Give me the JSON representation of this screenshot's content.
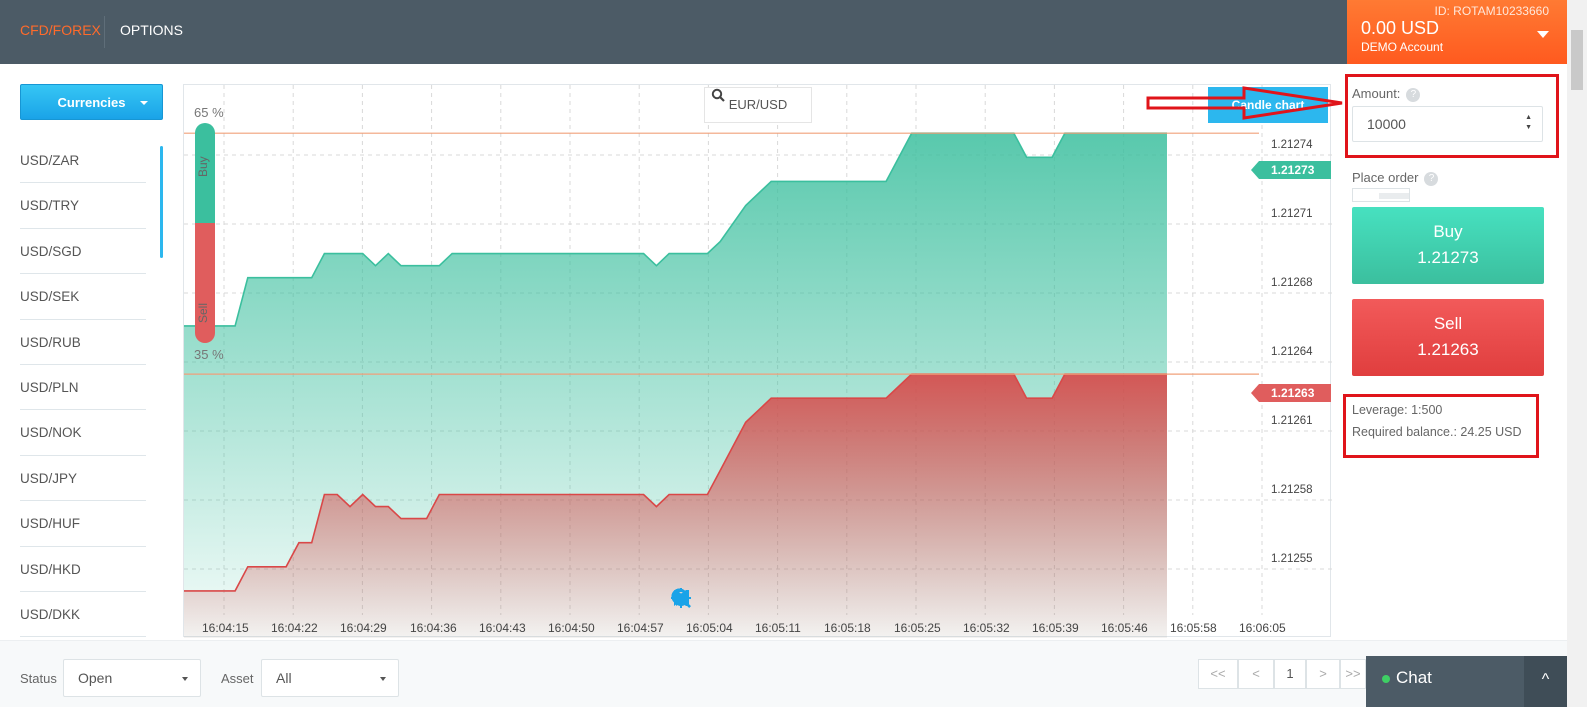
{
  "header": {
    "nav": [
      "CFD/FOREX",
      "OPTIONS"
    ],
    "account": {
      "id": "ID: ROTAM10233660",
      "balance": "0.00 USD",
      "type": "DEMO Account"
    }
  },
  "sidebar": {
    "currencies_button": "Currencies",
    "items": [
      "USD/ZAR",
      "USD/TRY",
      "USD/SGD",
      "USD/SEK",
      "USD/RUB",
      "USD/PLN",
      "USD/NOK",
      "USD/JPY",
      "USD/HUF",
      "USD/HKD",
      "USD/DKK"
    ]
  },
  "chart": {
    "pair": "EUR/USD",
    "candle_button": "Candle chart",
    "buy_pct": "65 %",
    "sell_pct": "35 %",
    "buy_label": "Buy",
    "sell_label": "Sell",
    "current_buy": "1.21273",
    "current_sell": "1.21263"
  },
  "chart_data": {
    "type": "area",
    "x": [
      "16:04:15",
      "16:04:22",
      "16:04:29",
      "16:04:36",
      "16:04:43",
      "16:04:50",
      "16:04:57",
      "16:05:04",
      "16:05:11",
      "16:05:18",
      "16:05:25",
      "16:05:32",
      "16:05:39",
      "16:05:46",
      "16:05:58",
      "16:06:05"
    ],
    "y_ticks": [
      "1.21274",
      "1.21271",
      "1.21268",
      "1.21264",
      "1.21261",
      "1.21258",
      "1.21255"
    ],
    "ylim": [
      1.21253,
      1.21275
    ],
    "series": [
      {
        "color": "#3bbf9e",
        "points": [
          [
            0,
            1.21265
          ],
          [
            4,
            1.21265
          ],
          [
            5,
            1.21267
          ],
          [
            10,
            1.21267
          ],
          [
            11,
            1.21268
          ],
          [
            14,
            1.21268
          ],
          [
            15,
            1.212675
          ],
          [
            16,
            1.21268
          ],
          [
            17,
            1.212675
          ],
          [
            20,
            1.212675
          ],
          [
            21,
            1.21268
          ],
          [
            36,
            1.21268
          ],
          [
            37,
            1.212675
          ],
          [
            38,
            1.21268
          ],
          [
            41,
            1.21268
          ],
          [
            42,
            1.212685
          ],
          [
            44,
            1.2127
          ],
          [
            46,
            1.21271
          ],
          [
            55,
            1.21271
          ],
          [
            57,
            1.21273
          ],
          [
            65,
            1.21273
          ],
          [
            66,
            1.21272
          ],
          [
            68,
            1.21272
          ],
          [
            69,
            1.21273
          ],
          [
            77,
            1.21273
          ]
        ]
      },
      {
        "color": "#d94848",
        "points": [
          [
            0,
            1.21254
          ],
          [
            4,
            1.21254
          ],
          [
            5,
            1.21255
          ],
          [
            8,
            1.21255
          ],
          [
            9,
            1.21256
          ],
          [
            10,
            1.21256
          ],
          [
            11,
            1.21258
          ],
          [
            12,
            1.21258
          ],
          [
            13,
            1.212575
          ],
          [
            14,
            1.21258
          ],
          [
            15,
            1.212575
          ],
          [
            16,
            1.212575
          ],
          [
            17,
            1.21257
          ],
          [
            19,
            1.21257
          ],
          [
            20,
            1.21258
          ],
          [
            36,
            1.21258
          ],
          [
            37,
            1.212575
          ],
          [
            38,
            1.21258
          ],
          [
            41,
            1.21258
          ],
          [
            42,
            1.21259
          ],
          [
            44,
            1.21261
          ],
          [
            46,
            1.21262
          ],
          [
            55,
            1.21262
          ],
          [
            57,
            1.21263
          ],
          [
            65,
            1.21263
          ],
          [
            66,
            1.21262
          ],
          [
            68,
            1.21262
          ],
          [
            69,
            1.21263
          ],
          [
            77,
            1.21263
          ]
        ]
      }
    ]
  },
  "order": {
    "amount_label": "Amount:",
    "amount_value": "10000",
    "place_order_label": "Place order",
    "help_glyph": "?",
    "buy": {
      "label": "Buy",
      "price": "1.21273"
    },
    "sell": {
      "label": "Sell",
      "price": "1.21263"
    },
    "leverage": "Leverage: 1:500",
    "required_balance": "Required balance.: 24.25 USD"
  },
  "filters": {
    "status_label": "Status",
    "status_value": "Open",
    "asset_label": "Asset",
    "asset_value": "All"
  },
  "pagination": {
    "first": "<<",
    "prev": "<",
    "page": "1",
    "next": ">",
    "last": ">>"
  },
  "chat": {
    "label": "Chat",
    "toggle": "^"
  }
}
